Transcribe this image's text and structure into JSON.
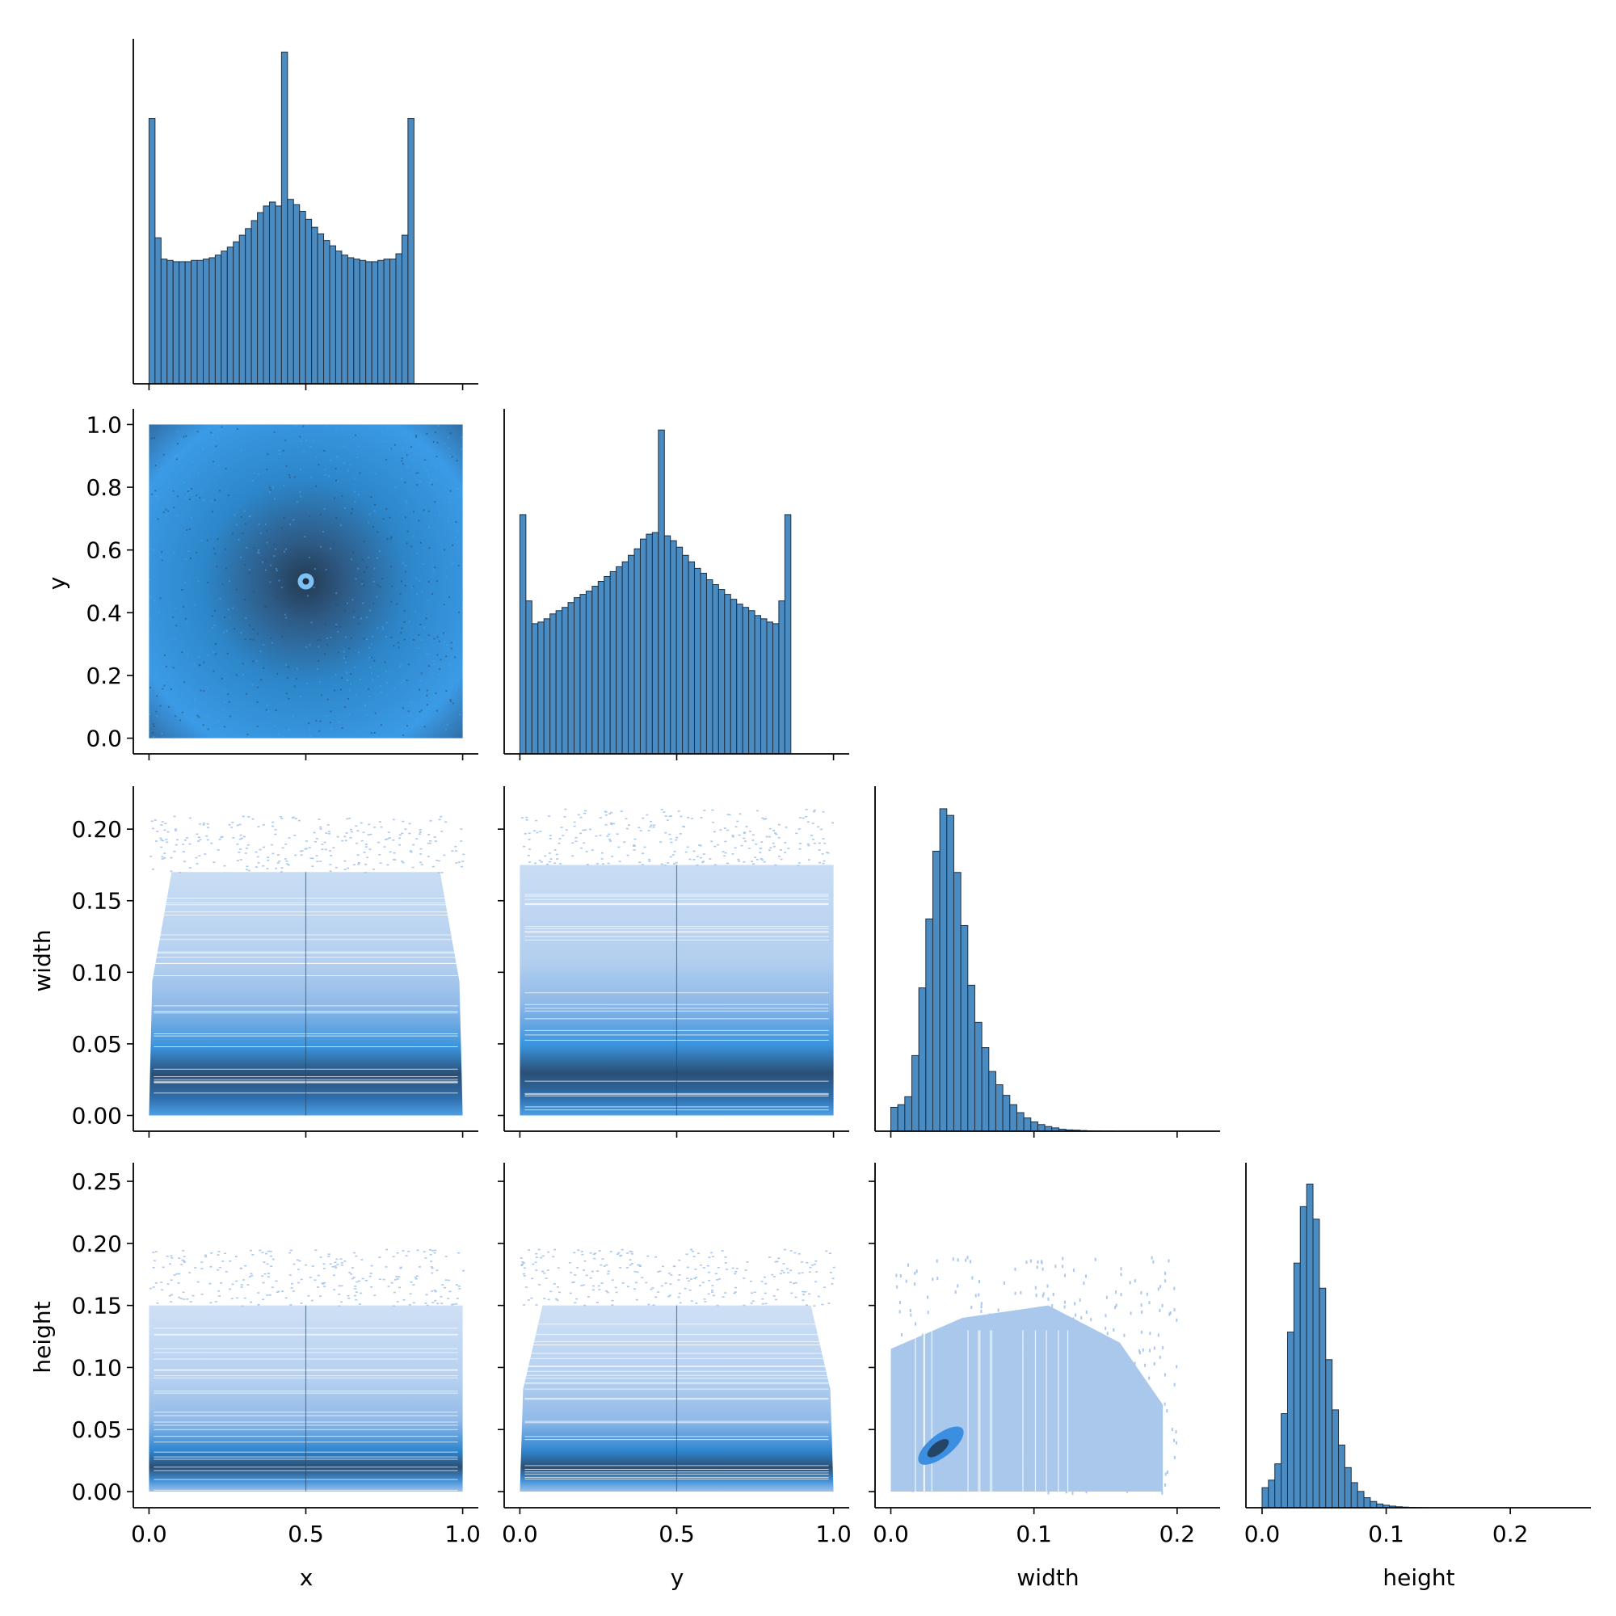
{
  "figure": {
    "type": "pairplot-corner"
  },
  "colors": {
    "bar": "#4a8bc2",
    "bar_edge": "#1f2f3f",
    "axis": "#000000",
    "dark": "#2e4a66",
    "mid": "#2a8ee0",
    "light": "#a9c8ec"
  },
  "axis_labels": {
    "x": "x",
    "y": "y",
    "width": "width",
    "height": "height"
  },
  "chart_data": [
    {
      "type": "bar",
      "panel": "x-histogram",
      "xlim": [
        -0.05,
        1.05
      ],
      "bin_start": 0.0,
      "bin_width": 0.0192,
      "values": [
        100,
        55,
        47,
        46.5,
        46,
        46,
        46,
        46.5,
        46.5,
        47,
        47.5,
        48.5,
        50,
        51.5,
        53.5,
        56,
        58.5,
        61.5,
        64.5,
        67,
        68.5,
        67,
        125,
        69.5,
        67.5,
        65,
        62,
        59,
        56.5,
        54,
        52,
        50,
        48.5,
        47.5,
        47,
        46.5,
        46,
        46,
        46.5,
        47,
        47,
        49,
        56,
        100
      ],
      "ylim": [
        0,
        130
      ]
    },
    {
      "type": "heatmap",
      "panel": "x-vs-y",
      "xlim": [
        -0.05,
        1.05
      ],
      "ylim": [
        -0.05,
        1.05
      ],
      "y_ticks": [
        "0.0",
        "0.2",
        "0.4",
        "0.6",
        "0.8",
        "1.0"
      ],
      "y_tick_values": [
        0.0,
        0.2,
        0.4,
        0.6,
        0.8,
        1.0
      ],
      "density_center": [
        0.5,
        0.5
      ]
    },
    {
      "type": "bar",
      "panel": "y-histogram",
      "xlim": [
        -0.05,
        1.05
      ],
      "bin_start": 0.0,
      "bin_width": 0.0192,
      "values": [
        73.5,
        47,
        40,
        40.5,
        41.5,
        43,
        44,
        45,
        46.5,
        48,
        49,
        50,
        51.5,
        53,
        54.5,
        56,
        57.5,
        59,
        61,
        63,
        66,
        67.5,
        68,
        99.5,
        67,
        65.5,
        63.5,
        61,
        59,
        57,
        55.5,
        53.5,
        52,
        50.5,
        49,
        47.5,
        46,
        45,
        44,
        42.5,
        41.5,
        40.5,
        40,
        47,
        73.5
      ],
      "ylim": [
        0,
        106
      ]
    },
    {
      "type": "heatmap",
      "panel": "x-vs-width",
      "xlim": [
        -0.05,
        1.05
      ],
      "ylim": [
        -0.011,
        0.23
      ],
      "y_ticks": [
        "0.00",
        "0.05",
        "0.10",
        "0.15",
        "0.20"
      ],
      "y_tick_values": [
        0.0,
        0.05,
        0.1,
        0.15,
        0.2
      ]
    },
    {
      "type": "heatmap",
      "panel": "y-vs-width",
      "xlim": [
        -0.05,
        1.05
      ],
      "ylim": [
        -0.011,
        0.23
      ]
    },
    {
      "type": "bar",
      "panel": "width-histogram",
      "xlim": [
        -0.011,
        0.23
      ],
      "bin_start": 0.0,
      "bin_width": 0.00489,
      "values": [
        18,
        20,
        26,
        57,
        108,
        160,
        211,
        243,
        238,
        195,
        155,
        110,
        82,
        63,
        45,
        35,
        27,
        20,
        14,
        10,
        7,
        5,
        3.5,
        2.5,
        1.5,
        1,
        0.8,
        0.5,
        0.3,
        0.2,
        0.1,
        0.1
      ],
      "ylim": [
        0,
        260
      ]
    },
    {
      "type": "heatmap",
      "panel": "x-vs-height",
      "xlim": [
        -0.05,
        1.05
      ],
      "ylim": [
        -0.013,
        0.265
      ],
      "y_ticks": [
        "0.00",
        "0.05",
        "0.10",
        "0.15",
        "0.20",
        "0.25"
      ],
      "y_tick_values": [
        0.0,
        0.05,
        0.1,
        0.15,
        0.2,
        0.25
      ],
      "x_ticks": [
        "0.0",
        "0.5",
        "1.0"
      ],
      "x_tick_values": [
        0.0,
        0.5,
        1.0
      ]
    },
    {
      "type": "heatmap",
      "panel": "y-vs-height",
      "xlim": [
        -0.05,
        1.05
      ],
      "ylim": [
        -0.013,
        0.265
      ],
      "x_ticks": [
        "0.0",
        "0.5",
        "1.0"
      ],
      "x_tick_values": [
        0.0,
        0.5,
        1.0
      ]
    },
    {
      "type": "heatmap",
      "panel": "width-vs-height",
      "xlim": [
        -0.011,
        0.23
      ],
      "ylim": [
        -0.013,
        0.265
      ],
      "x_ticks": [
        "0.0",
        "0.1",
        "0.2"
      ],
      "x_tick_values": [
        0.0,
        0.1,
        0.2
      ]
    },
    {
      "type": "bar",
      "panel": "height-histogram",
      "xlim": [
        -0.013,
        0.265
      ],
      "bin_start": 0.0,
      "bin_width": 0.00513,
      "values": [
        16,
        22,
        35,
        75,
        140,
        195,
        240,
        258,
        230,
        175,
        118,
        78,
        50,
        32,
        20,
        13,
        8,
        5,
        3,
        2,
        1.3,
        0.8,
        0.5,
        0.3,
        0.2,
        0.1
      ],
      "ylim": [
        0,
        275
      ],
      "x_ticks": [
        "0.0",
        "0.1",
        "0.2"
      ],
      "x_tick_values": [
        0.0,
        0.1,
        0.2
      ]
    }
  ]
}
